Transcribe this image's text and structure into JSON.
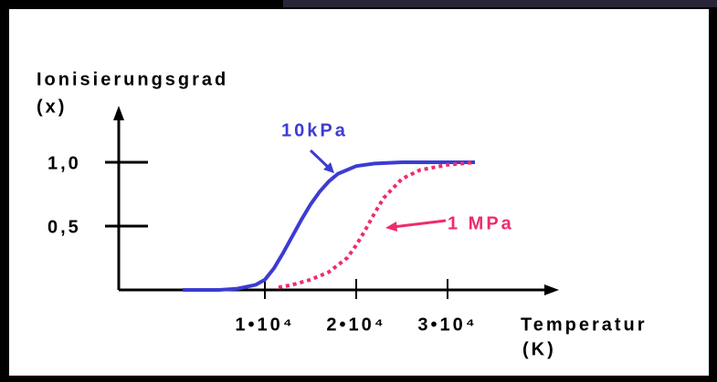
{
  "chart_data": {
    "type": "line",
    "y_label": "Ionisierungsgrad",
    "y_unit": "(x)",
    "x_label": "Temperatur",
    "x_unit": "(K)",
    "xlim": [
      -6000,
      42000
    ],
    "xticks": [
      {
        "value": 10000,
        "label": "1•10⁴"
      },
      {
        "value": 20000,
        "label": "2•10⁴"
      },
      {
        "value": 30000,
        "label": "3•10⁴"
      }
    ],
    "ylim": [
      0,
      1.4
    ],
    "yticks": [
      {
        "value": 1.0,
        "label": "1,0"
      },
      {
        "value": 0.5,
        "label": "0,5"
      }
    ],
    "series": [
      {
        "name": "10kPa",
        "color": "#3c3cd2",
        "dash": false,
        "x": [
          1000,
          5000,
          7000,
          9000,
          10000,
          11000,
          12000,
          13000,
          14000,
          15000,
          16000,
          17000,
          18000,
          20000,
          22000,
          25000,
          30000,
          33000
        ],
        "values": [
          0,
          0,
          0.01,
          0.04,
          0.08,
          0.17,
          0.29,
          0.42,
          0.55,
          0.67,
          0.77,
          0.85,
          0.91,
          0.97,
          0.99,
          1.0,
          1.0,
          1.0
        ]
      },
      {
        "name": "1 MPa",
        "color": "#ee2c6c",
        "dash": true,
        "x": [
          11500,
          13000,
          15000,
          17000,
          19000,
          20000,
          21000,
          22000,
          23000,
          25000,
          27000,
          30000,
          33000
        ],
        "values": [
          0.02,
          0.04,
          0.08,
          0.14,
          0.25,
          0.35,
          0.47,
          0.6,
          0.72,
          0.87,
          0.94,
          0.98,
          1.0
        ]
      }
    ]
  }
}
